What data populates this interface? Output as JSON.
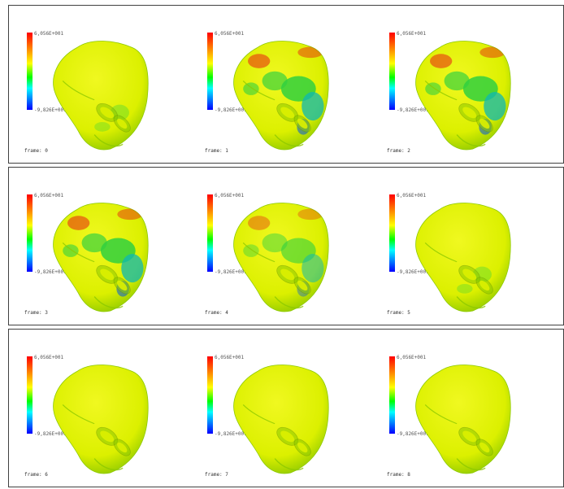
{
  "colorbar": {
    "max_label": "6,056E+001",
    "min_label": "-9,826E+001"
  },
  "frames": [
    {
      "label": "frame: 0",
      "activity": "low"
    },
    {
      "label": "frame: 1",
      "activity": "high"
    },
    {
      "label": "frame: 2",
      "activity": "high"
    },
    {
      "label": "frame: 3",
      "activity": "high"
    },
    {
      "label": "frame: 4",
      "activity": "medium"
    },
    {
      "label": "frame: 5",
      "activity": "low"
    },
    {
      "label": "frame: 6",
      "activity": "none"
    },
    {
      "label": "frame: 7",
      "activity": "none"
    },
    {
      "label": "frame: 8",
      "activity": "none"
    }
  ],
  "colors": {
    "border": "#404040",
    "surface_base": "#dcf000",
    "surface_shadow": "#8cc800",
    "hot": "#e83010",
    "cool": "#10b8b0",
    "green": "#30d040",
    "blue": "#1060d0"
  }
}
